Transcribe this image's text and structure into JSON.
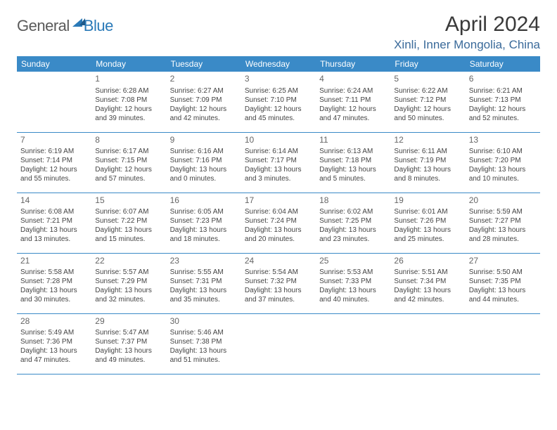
{
  "brand": {
    "part1": "General",
    "part2": "Blue"
  },
  "title": "April 2024",
  "location": "Xinli, Inner Mongolia, China",
  "style": {
    "header_bg": "#3a8ac7",
    "header_fg": "#ffffff",
    "border_color": "#3a8ac7",
    "title_color": "#3a3a3a",
    "location_color": "#3a6a9a",
    "body_text_color": "#444444",
    "daynum_color": "#666666",
    "title_fontsize": 30,
    "location_fontsize": 17,
    "dayhdr_fontsize": 12,
    "cell_fontsize": 10
  },
  "day_headers": [
    "Sunday",
    "Monday",
    "Tuesday",
    "Wednesday",
    "Thursday",
    "Friday",
    "Saturday"
  ],
  "weeks": [
    [
      null,
      {
        "d": "1",
        "sr": "Sunrise: 6:28 AM",
        "ss": "Sunset: 7:08 PM",
        "dl1": "Daylight: 12 hours",
        "dl2": "and 39 minutes."
      },
      {
        "d": "2",
        "sr": "Sunrise: 6:27 AM",
        "ss": "Sunset: 7:09 PM",
        "dl1": "Daylight: 12 hours",
        "dl2": "and 42 minutes."
      },
      {
        "d": "3",
        "sr": "Sunrise: 6:25 AM",
        "ss": "Sunset: 7:10 PM",
        "dl1": "Daylight: 12 hours",
        "dl2": "and 45 minutes."
      },
      {
        "d": "4",
        "sr": "Sunrise: 6:24 AM",
        "ss": "Sunset: 7:11 PM",
        "dl1": "Daylight: 12 hours",
        "dl2": "and 47 minutes."
      },
      {
        "d": "5",
        "sr": "Sunrise: 6:22 AM",
        "ss": "Sunset: 7:12 PM",
        "dl1": "Daylight: 12 hours",
        "dl2": "and 50 minutes."
      },
      {
        "d": "6",
        "sr": "Sunrise: 6:21 AM",
        "ss": "Sunset: 7:13 PM",
        "dl1": "Daylight: 12 hours",
        "dl2": "and 52 minutes."
      }
    ],
    [
      {
        "d": "7",
        "sr": "Sunrise: 6:19 AM",
        "ss": "Sunset: 7:14 PM",
        "dl1": "Daylight: 12 hours",
        "dl2": "and 55 minutes."
      },
      {
        "d": "8",
        "sr": "Sunrise: 6:17 AM",
        "ss": "Sunset: 7:15 PM",
        "dl1": "Daylight: 12 hours",
        "dl2": "and 57 minutes."
      },
      {
        "d": "9",
        "sr": "Sunrise: 6:16 AM",
        "ss": "Sunset: 7:16 PM",
        "dl1": "Daylight: 13 hours",
        "dl2": "and 0 minutes."
      },
      {
        "d": "10",
        "sr": "Sunrise: 6:14 AM",
        "ss": "Sunset: 7:17 PM",
        "dl1": "Daylight: 13 hours",
        "dl2": "and 3 minutes."
      },
      {
        "d": "11",
        "sr": "Sunrise: 6:13 AM",
        "ss": "Sunset: 7:18 PM",
        "dl1": "Daylight: 13 hours",
        "dl2": "and 5 minutes."
      },
      {
        "d": "12",
        "sr": "Sunrise: 6:11 AM",
        "ss": "Sunset: 7:19 PM",
        "dl1": "Daylight: 13 hours",
        "dl2": "and 8 minutes."
      },
      {
        "d": "13",
        "sr": "Sunrise: 6:10 AM",
        "ss": "Sunset: 7:20 PM",
        "dl1": "Daylight: 13 hours",
        "dl2": "and 10 minutes."
      }
    ],
    [
      {
        "d": "14",
        "sr": "Sunrise: 6:08 AM",
        "ss": "Sunset: 7:21 PM",
        "dl1": "Daylight: 13 hours",
        "dl2": "and 13 minutes."
      },
      {
        "d": "15",
        "sr": "Sunrise: 6:07 AM",
        "ss": "Sunset: 7:22 PM",
        "dl1": "Daylight: 13 hours",
        "dl2": "and 15 minutes."
      },
      {
        "d": "16",
        "sr": "Sunrise: 6:05 AM",
        "ss": "Sunset: 7:23 PM",
        "dl1": "Daylight: 13 hours",
        "dl2": "and 18 minutes."
      },
      {
        "d": "17",
        "sr": "Sunrise: 6:04 AM",
        "ss": "Sunset: 7:24 PM",
        "dl1": "Daylight: 13 hours",
        "dl2": "and 20 minutes."
      },
      {
        "d": "18",
        "sr": "Sunrise: 6:02 AM",
        "ss": "Sunset: 7:25 PM",
        "dl1": "Daylight: 13 hours",
        "dl2": "and 23 minutes."
      },
      {
        "d": "19",
        "sr": "Sunrise: 6:01 AM",
        "ss": "Sunset: 7:26 PM",
        "dl1": "Daylight: 13 hours",
        "dl2": "and 25 minutes."
      },
      {
        "d": "20",
        "sr": "Sunrise: 5:59 AM",
        "ss": "Sunset: 7:27 PM",
        "dl1": "Daylight: 13 hours",
        "dl2": "and 28 minutes."
      }
    ],
    [
      {
        "d": "21",
        "sr": "Sunrise: 5:58 AM",
        "ss": "Sunset: 7:28 PM",
        "dl1": "Daylight: 13 hours",
        "dl2": "and 30 minutes."
      },
      {
        "d": "22",
        "sr": "Sunrise: 5:57 AM",
        "ss": "Sunset: 7:29 PM",
        "dl1": "Daylight: 13 hours",
        "dl2": "and 32 minutes."
      },
      {
        "d": "23",
        "sr": "Sunrise: 5:55 AM",
        "ss": "Sunset: 7:31 PM",
        "dl1": "Daylight: 13 hours",
        "dl2": "and 35 minutes."
      },
      {
        "d": "24",
        "sr": "Sunrise: 5:54 AM",
        "ss": "Sunset: 7:32 PM",
        "dl1": "Daylight: 13 hours",
        "dl2": "and 37 minutes."
      },
      {
        "d": "25",
        "sr": "Sunrise: 5:53 AM",
        "ss": "Sunset: 7:33 PM",
        "dl1": "Daylight: 13 hours",
        "dl2": "and 40 minutes."
      },
      {
        "d": "26",
        "sr": "Sunrise: 5:51 AM",
        "ss": "Sunset: 7:34 PM",
        "dl1": "Daylight: 13 hours",
        "dl2": "and 42 minutes."
      },
      {
        "d": "27",
        "sr": "Sunrise: 5:50 AM",
        "ss": "Sunset: 7:35 PM",
        "dl1": "Daylight: 13 hours",
        "dl2": "and 44 minutes."
      }
    ],
    [
      {
        "d": "28",
        "sr": "Sunrise: 5:49 AM",
        "ss": "Sunset: 7:36 PM",
        "dl1": "Daylight: 13 hours",
        "dl2": "and 47 minutes."
      },
      {
        "d": "29",
        "sr": "Sunrise: 5:47 AM",
        "ss": "Sunset: 7:37 PM",
        "dl1": "Daylight: 13 hours",
        "dl2": "and 49 minutes."
      },
      {
        "d": "30",
        "sr": "Sunrise: 5:46 AM",
        "ss": "Sunset: 7:38 PM",
        "dl1": "Daylight: 13 hours",
        "dl2": "and 51 minutes."
      },
      null,
      null,
      null,
      null
    ]
  ]
}
